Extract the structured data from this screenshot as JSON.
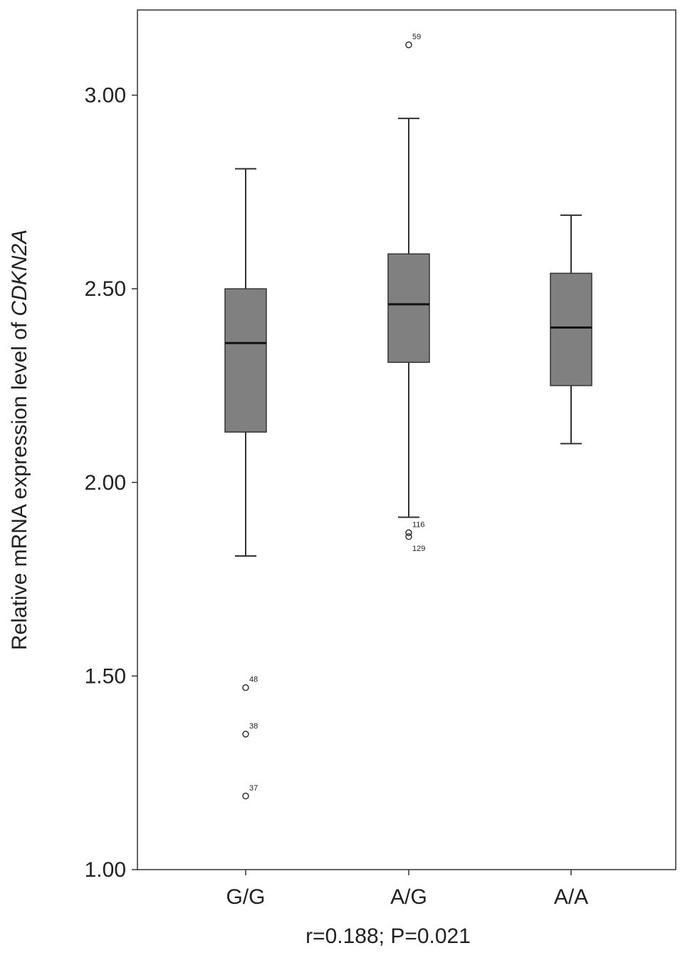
{
  "chart_data": {
    "type": "boxplot",
    "title": "",
    "ylabel_prefix": "Relative mRNA expression level of ",
    "ylabel_gene": "CDKN2A",
    "xlabel": "r=0.188; P=0.021",
    "ylim": [
      1.0,
      3.22
    ],
    "yticks": [
      {
        "value": 1.0,
        "label": "1.00"
      },
      {
        "value": 1.5,
        "label": "1.50"
      },
      {
        "value": 2.0,
        "label": "2.00"
      },
      {
        "value": 2.5,
        "label": "2.50"
      },
      {
        "value": 3.0,
        "label": "3.00"
      }
    ],
    "grid": false,
    "box_color": "#808080",
    "categories": [
      "G/G",
      "A/G",
      "A/A"
    ],
    "boxes": [
      {
        "category": "G/G",
        "whisker_low": 1.81,
        "q1": 2.13,
        "median": 2.36,
        "q3": 2.5,
        "whisker_high": 2.81,
        "outliers": [
          {
            "value": 1.47,
            "label": "48"
          },
          {
            "value": 1.35,
            "label": "38"
          },
          {
            "value": 1.19,
            "label": "37"
          }
        ]
      },
      {
        "category": "A/G",
        "whisker_low": 1.91,
        "q1": 2.31,
        "median": 2.46,
        "q3": 2.59,
        "whisker_high": 2.94,
        "outliers": [
          {
            "value": 3.13,
            "label": "59"
          },
          {
            "value": 1.87,
            "label": "116"
          },
          {
            "value": 1.86,
            "label": "129"
          }
        ]
      },
      {
        "category": "A/A",
        "whisker_low": 2.1,
        "q1": 2.25,
        "median": 2.4,
        "q3": 2.54,
        "whisker_high": 2.69,
        "outliers": []
      }
    ]
  }
}
